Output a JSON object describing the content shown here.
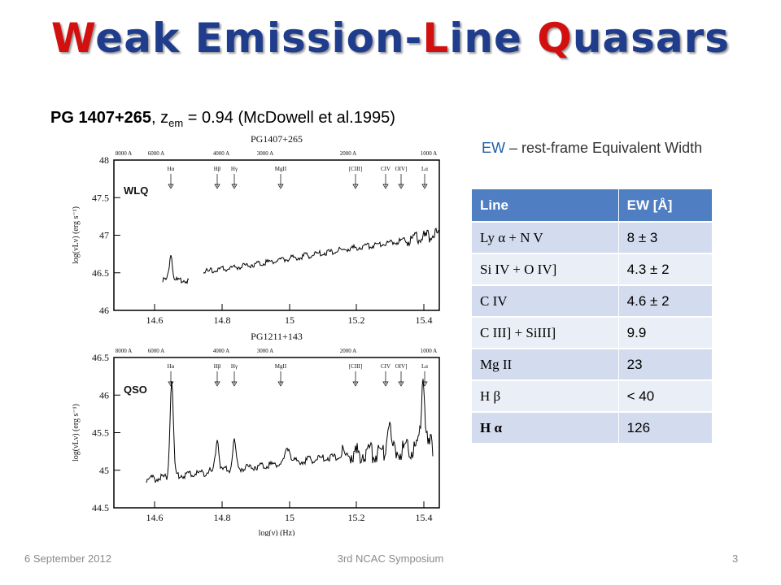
{
  "header": {
    "title_parts": [
      "W",
      "eak Emission-",
      "L",
      "ine ",
      "Q",
      "uasars"
    ]
  },
  "subtitle": {
    "object": "PG 1407+265",
    "comma": ", z",
    "sub": "em",
    "rest": " = 0.94 (McDowell et al.1995)"
  },
  "ew_note": {
    "abbr": "EW",
    "rest": " – rest-frame Equivalent Width"
  },
  "figures": [
    {
      "title": "PG1407+265",
      "label": "WLQ",
      "yticks": [
        "48",
        "47.5",
        "47",
        "46.5",
        "46"
      ],
      "xticks": [
        "14.6",
        "14.8",
        "15",
        "15.2",
        "15.4"
      ],
      "ylabel": "log(νLν) (erg s⁻¹)",
      "wavelengths": [
        "8000 A",
        "6000 A",
        "4000 A",
        "3000 A",
        "2000 A",
        "1000 A"
      ],
      "lines": [
        "Hα",
        "Hβ",
        "Hγ",
        "MgII",
        "[CIII]",
        "CIV",
        "OIV]",
        "Lα"
      ]
    },
    {
      "title": "PG1211+143",
      "label": "QSO",
      "yticks": [
        "46.5",
        "46",
        "45.5",
        "45",
        "44.5"
      ],
      "xticks": [
        "14.6",
        "14.8",
        "15",
        "15.2",
        "15.4"
      ],
      "ylabel": "log(νLν) (erg s⁻¹)",
      "xlabel": "log(ν) (Hz)",
      "wavelengths": [
        "8000 A",
        "6000 A",
        "4000 A",
        "3000 A",
        "2000 A",
        "1000 A"
      ],
      "lines": [
        "Hα",
        "Hβ",
        "Hγ",
        "MgII",
        "[CIII]",
        "CIV",
        "OIV]",
        "Lα"
      ]
    }
  ],
  "table": {
    "header": [
      "Line",
      "EW [Å]"
    ],
    "rows": [
      [
        "Ly α + N V",
        "8 ± 3"
      ],
      [
        "Si IV + O IV]",
        "4.3 ± 2"
      ],
      [
        "C IV",
        "4.6 ± 2"
      ],
      [
        "C III] + SiIII]",
        "9.9"
      ],
      [
        "Mg II",
        "23"
      ],
      [
        "H β",
        "< 40"
      ],
      [
        "H α",
        "126"
      ]
    ]
  },
  "footer": {
    "date": "6 September 2012",
    "event": "3rd NCAC Symposium",
    "page": "3"
  }
}
